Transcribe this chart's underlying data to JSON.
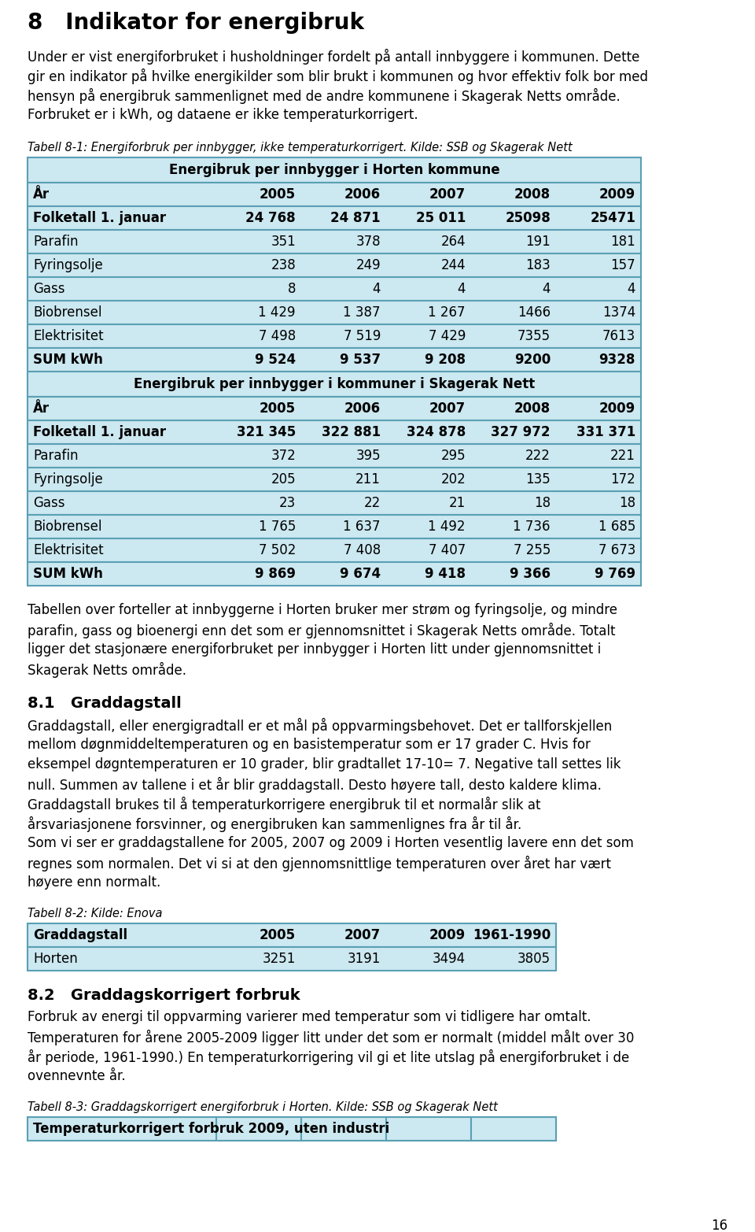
{
  "page_number": "16",
  "section_title": "8   Indikator for energibruk",
  "intro_lines": [
    "Under er vist energiforbruket i husholdninger fordelt på antall innbyggere i kommunen. Dette",
    "gir en indikator på hvilke energikilder som blir brukt i kommunen og hvor effektiv folk bor med",
    "hensyn på energibruk sammenlignet med de andre kommunene i Skagerak Netts område.",
    "Forbruket er i kWh, og dataene er ikke temperaturkorrigert."
  ],
  "table1_caption": "Tabell 8-1: Energiforbruk per innbygger, ikke temperaturkorrigert. Kilde: SSB og Skagerak Nett",
  "table1_title": "Energibruk per innbygger i Horten kommune",
  "table1_header": [
    "År",
    "2005",
    "2006",
    "2007",
    "2008",
    "2009"
  ],
  "table1_rows": [
    [
      "Folketall 1. januar",
      "24 768",
      "24 871",
      "25 011",
      "25098",
      "25471"
    ],
    [
      "Parafin",
      "351",
      "378",
      "264",
      "191",
      "181"
    ],
    [
      "Fyringsolje",
      "238",
      "249",
      "244",
      "183",
      "157"
    ],
    [
      "Gass",
      "8",
      "4",
      "4",
      "4",
      "4"
    ],
    [
      "Biobrensel",
      "1 429",
      "1 387",
      "1 267",
      "1466",
      "1374"
    ],
    [
      "Elektrisitet",
      "7 498",
      "7 519",
      "7 429",
      "7355",
      "7613"
    ],
    [
      "SUM kWh",
      "9 524",
      "9 537",
      "9 208",
      "9200",
      "9328"
    ]
  ],
  "table2_title": "Energibruk per innbygger i kommuner i Skagerak Nett",
  "table2_header": [
    "År",
    "2005",
    "2006",
    "2007",
    "2008",
    "2009"
  ],
  "table2_rows": [
    [
      "Folketall 1. januar",
      "321 345",
      "322 881",
      "324 878",
      "327 972",
      "331 371"
    ],
    [
      "Parafin",
      "372",
      "395",
      "295",
      "222",
      "221"
    ],
    [
      "Fyringsolje",
      "205",
      "211",
      "202",
      "135",
      "172"
    ],
    [
      "Gass",
      "23",
      "22",
      "21",
      "18",
      "18"
    ],
    [
      "Biobrensel",
      "1 765",
      "1 637",
      "1 492",
      "1 736",
      "1 685"
    ],
    [
      "Elektrisitet",
      "7 502",
      "7 408",
      "7 407",
      "7 255",
      "7 673"
    ],
    [
      "SUM kWh",
      "9 869",
      "9 674",
      "9 418",
      "9 366",
      "9 769"
    ]
  ],
  "para2_lines": [
    "Tabellen over forteller at innbyggerne i Horten bruker mer strøm og fyringsolje, og mindre",
    "parafin, gass og bioenergi enn det som er gjennomsnittet i Skagerak Netts område. Totalt",
    "ligger det stasjonære energiforbruket per innbygger i Horten litt under gjennomsnittet i",
    "Skagerak Netts område."
  ],
  "section2_title": "8.1   Graddagstall",
  "section2_lines": [
    "Graddagstall, eller energigradtall er et mål på oppvarmingsbehovet. Det er tallforskjellen",
    "mellom døgnmiddeltemperaturen og en basistemperatur som er 17 grader C. Hvis for",
    "eksempel døgntemperaturen er 10 grader, blir gradtallet 17-10= 7. Negative tall settes lik",
    "null. Summen av tallene i et år blir graddagstall. Desto høyere tall, desto kaldere klima.",
    "Graddagstall brukes til å temperaturkorrigere energibruk til et normalår slik at",
    "årsvariasjonene forsvinner, og energibruken kan sammenlignes fra år til år.",
    "Som vi ser er graddagstallene for 2005, 2007 og 2009 i Horten vesentlig lavere enn det som",
    "regnes som normalen. Det vi si at den gjennomsnittlige temperaturen over året har vært",
    "høyere enn normalt."
  ],
  "table3_caption": "Tabell 8-2: Kilde: Enova",
  "table3_header": [
    "Graddagstall",
    "2005",
    "2007",
    "2009",
    "1961-1990"
  ],
  "table3_rows": [
    [
      "Horten",
      "3251",
      "3191",
      "3494",
      "3805"
    ]
  ],
  "section3_title": "8.2   Graddagskorrigert forbruk",
  "section3_lines": [
    "Forbruk av energi til oppvarming varierer med temperatur som vi tidligere har omtalt.",
    "Temperaturen for årene 2005-2009 ligger litt under det som er normalt (middel målt over 30",
    "år periode, 1961-1990.) En temperaturkorrigering vil gi et lite utslag på energiforbruket i de",
    "ovennevnte år."
  ],
  "table4_caption": "Tabell 8-3: Graddagskorrigert energiforbruk i Horten. Kilde: SSB og Skagerak Nett",
  "table4_header_partial": "Temperaturkorrigert forbruk 2009, uten industri",
  "bg_color": "#cce8f0",
  "border_color": "#5aa0b4",
  "bold_rows": [
    "SUM kWh",
    "Folketall 1. januar"
  ]
}
